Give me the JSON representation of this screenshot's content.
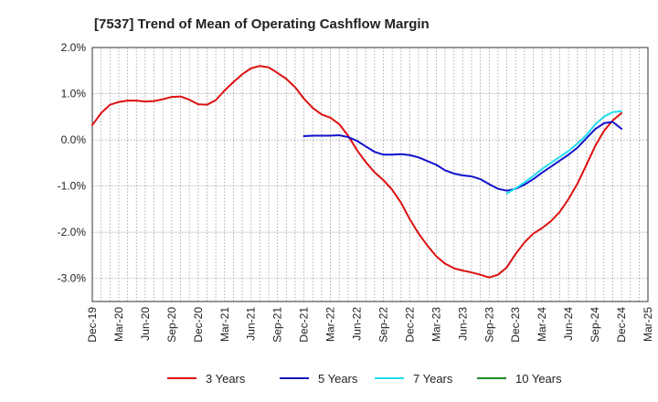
{
  "chart_data": {
    "type": "line",
    "title": "[7537]  Trend of Mean of Operating Cashflow Margin",
    "xlabel": "",
    "ylabel": "",
    "ylim": [
      -3.5,
      2.0
    ],
    "grid": true,
    "legend_position": "bottom",
    "y_ticks": [
      "2.0%",
      "1.0%",
      "0.0%",
      "-1.0%",
      "-2.0%",
      "-3.0%"
    ],
    "y_tick_values": [
      2.0,
      1.0,
      0.0,
      -1.0,
      -2.0,
      -3.0
    ],
    "x_ticks": [
      "Dec-19",
      "Mar-20",
      "Jun-20",
      "Sep-20",
      "Dec-20",
      "Mar-21",
      "Jun-21",
      "Sep-21",
      "Dec-21",
      "Mar-22",
      "Jun-22",
      "Sep-22",
      "Dec-22",
      "Mar-23",
      "Jun-23",
      "Sep-23",
      "Dec-23",
      "Mar-24",
      "Jun-24",
      "Sep-24",
      "Dec-24",
      "Mar-25"
    ],
    "series": [
      {
        "name": "3 Years",
        "color": "#dd1111",
        "start_index": 0,
        "values": [
          0.32,
          0.58,
          0.76,
          0.82,
          0.85,
          0.85,
          0.83,
          0.84,
          0.88,
          0.93,
          0.94,
          0.87,
          0.77,
          0.76,
          0.86,
          1.07,
          1.25,
          1.42,
          1.55,
          1.6,
          1.57,
          1.45,
          1.32,
          1.14,
          0.89,
          0.69,
          0.55,
          0.48,
          0.34,
          0.09,
          -0.22,
          -0.48,
          -0.7,
          -0.87,
          -1.08,
          -1.36,
          -1.72,
          -2.03,
          -2.29,
          -2.52,
          -2.68,
          -2.78,
          -2.83,
          -2.87,
          -2.92,
          -2.98,
          -2.92,
          -2.76,
          -2.47,
          -2.22,
          -2.03,
          -1.91,
          -1.76,
          -1.56,
          -1.28,
          -0.95,
          -0.55,
          -0.14,
          0.19,
          0.42,
          0.58
        ]
      },
      {
        "name": "5 Years",
        "color": "#1111cc",
        "start_index": 24,
        "values": [
          0.08,
          0.09,
          0.09,
          0.09,
          0.1,
          0.06,
          -0.02,
          -0.14,
          -0.26,
          -0.32,
          -0.32,
          -0.31,
          -0.33,
          -0.38,
          -0.46,
          -0.54,
          -0.66,
          -0.73,
          -0.77,
          -0.79,
          -0.85,
          -0.96,
          -1.06,
          -1.1,
          -1.06,
          -0.97,
          -0.85,
          -0.71,
          -0.58,
          -0.45,
          -0.32,
          -0.17,
          0.03,
          0.23,
          0.36,
          0.39,
          0.24
        ]
      },
      {
        "name": "7 Years",
        "color": "#22ddee",
        "start_index": 47,
        "values": [
          -1.16,
          -1.05,
          -0.92,
          -0.78,
          -0.63,
          -0.5,
          -0.37,
          -0.24,
          -0.08,
          0.1,
          0.33,
          0.5,
          0.6,
          0.62
        ]
      },
      {
        "name": "10 Years",
        "color": "#228822",
        "start_index": 0,
        "values": []
      }
    ]
  }
}
